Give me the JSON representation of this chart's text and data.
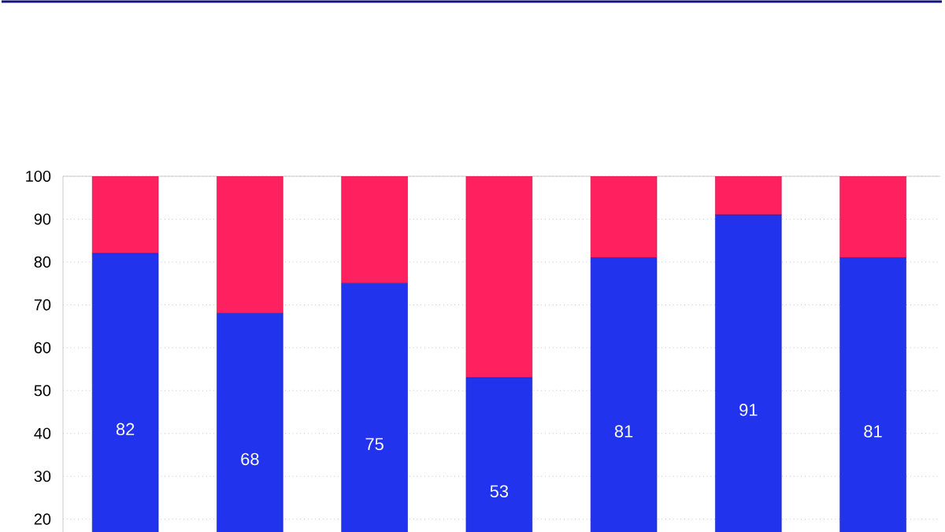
{
  "chart_data": {
    "type": "bar",
    "stacked": true,
    "categories": [
      null,
      null,
      null,
      null,
      null,
      null,
      null
    ],
    "series": [
      {
        "color": "#2233ee",
        "values": [
          82,
          68,
          75,
          53,
          81,
          91,
          81
        ],
        "value_labels": [
          "82",
          "68",
          "75",
          "53",
          "81",
          "91",
          "81"
        ]
      },
      {
        "color": "#ff2060",
        "values": [
          18,
          32,
          25,
          47,
          19,
          9,
          19
        ]
      }
    ],
    "ylim": [
      0,
      100
    ],
    "yticks": [
      20,
      30,
      40,
      50,
      60,
      70,
      80,
      90,
      100
    ],
    "grid": "y"
  }
}
